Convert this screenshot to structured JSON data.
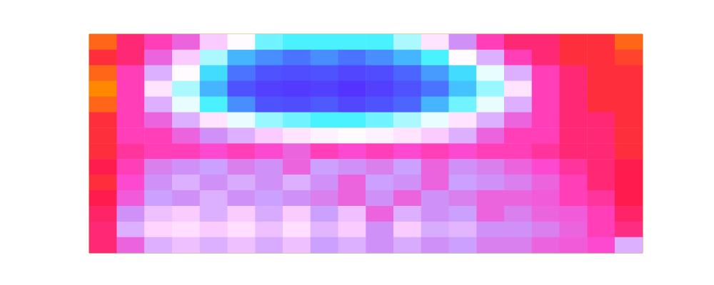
{
  "chart_data": {
    "type": "heatmap",
    "tick_labels": false,
    "cells": [
      [
        7.5,
        6.5,
        6,
        5.5,
        4,
        3,
        2.2,
        2,
        2,
        2,
        2,
        2.5,
        3.5,
        5,
        6,
        6.5,
        6.5,
        7,
        7,
        7.5
      ],
      [
        7,
        6.5,
        5.5,
        4,
        2.5,
        1.5,
        1.2,
        1,
        1.2,
        1,
        1.2,
        1.5,
        2,
        3,
        4.5,
        6,
        6.5,
        7,
        7,
        7.2
      ],
      [
        7.5,
        6,
        4.5,
        3,
        1.8,
        1,
        0.5,
        0.4,
        0.5,
        0.3,
        0.4,
        0.8,
        1.3,
        1.8,
        2.8,
        4.5,
        6,
        6.5,
        7,
        7
      ],
      [
        7.8,
        6,
        3.5,
        2.5,
        1.5,
        0.5,
        0.2,
        0.1,
        0.2,
        0,
        0.2,
        0.5,
        1,
        1.6,
        2.4,
        3.5,
        6,
        6.5,
        7,
        7
      ],
      [
        7.5,
        6,
        4.5,
        2.8,
        2,
        1.2,
        0.5,
        0.4,
        0.6,
        0.3,
        0.5,
        0.8,
        1.5,
        2.2,
        2.8,
        4.5,
        6,
        6.5,
        7,
        7
      ],
      [
        7,
        6,
        5.5,
        4.5,
        3.5,
        2.8,
        2.4,
        2.2,
        2,
        2,
        2.2,
        2.5,
        2.8,
        3.5,
        4.5,
        5.5,
        6,
        6.5,
        6.5,
        7
      ],
      [
        7,
        6,
        6,
        5.5,
        5,
        4.5,
        4,
        3.5,
        3.2,
        3,
        3.2,
        3.5,
        4,
        4.5,
        5.5,
        6,
        6,
        6.5,
        6.5,
        7
      ],
      [
        7,
        6.2,
        6,
        6,
        5.8,
        6,
        5.8,
        5.5,
        6,
        5.8,
        6,
        5.8,
        6,
        5.8,
        6,
        6,
        6.2,
        6.5,
        6.5,
        7
      ],
      [
        6.8,
        6,
        5.2,
        5,
        4.8,
        5.2,
        5,
        5.5,
        4.8,
        5,
        5.2,
        4.8,
        5.5,
        5,
        5.2,
        5.5,
        5.8,
        6.2,
        6.5,
        6.8
      ],
      [
        7,
        5.8,
        5,
        4.5,
        5,
        4.6,
        5,
        4.5,
        5,
        5.5,
        4.8,
        5,
        5.5,
        4.8,
        5,
        5.2,
        5.5,
        6,
        6.5,
        6.8
      ],
      [
        6.8,
        5.6,
        4.8,
        5,
        4.5,
        5,
        4.8,
        5,
        5.2,
        5.5,
        5,
        5.5,
        5,
        5.2,
        5.5,
        5.5,
        5.6,
        6,
        6.2,
        6.8
      ],
      [
        6.6,
        5,
        4.2,
        4,
        4.5,
        4,
        4.6,
        4,
        4.8,
        4.2,
        5.5,
        4.5,
        5,
        4.8,
        5.5,
        5.2,
        5.5,
        5.6,
        6,
        6.6
      ],
      [
        6.5,
        4.5,
        3.8,
        3.6,
        4,
        3.6,
        4.2,
        3.6,
        4.4,
        4,
        5,
        4,
        4.6,
        4.4,
        5,
        5,
        5.2,
        5.5,
        6,
        6.4
      ],
      [
        6.5,
        5.5,
        4.5,
        4.2,
        4.5,
        4.2,
        4.6,
        4.2,
        4.8,
        4.5,
        5,
        4.6,
        5,
        4.8,
        5.2,
        5.2,
        5.5,
        5.6,
        5.8,
        4.5
      ]
    ]
  }
}
